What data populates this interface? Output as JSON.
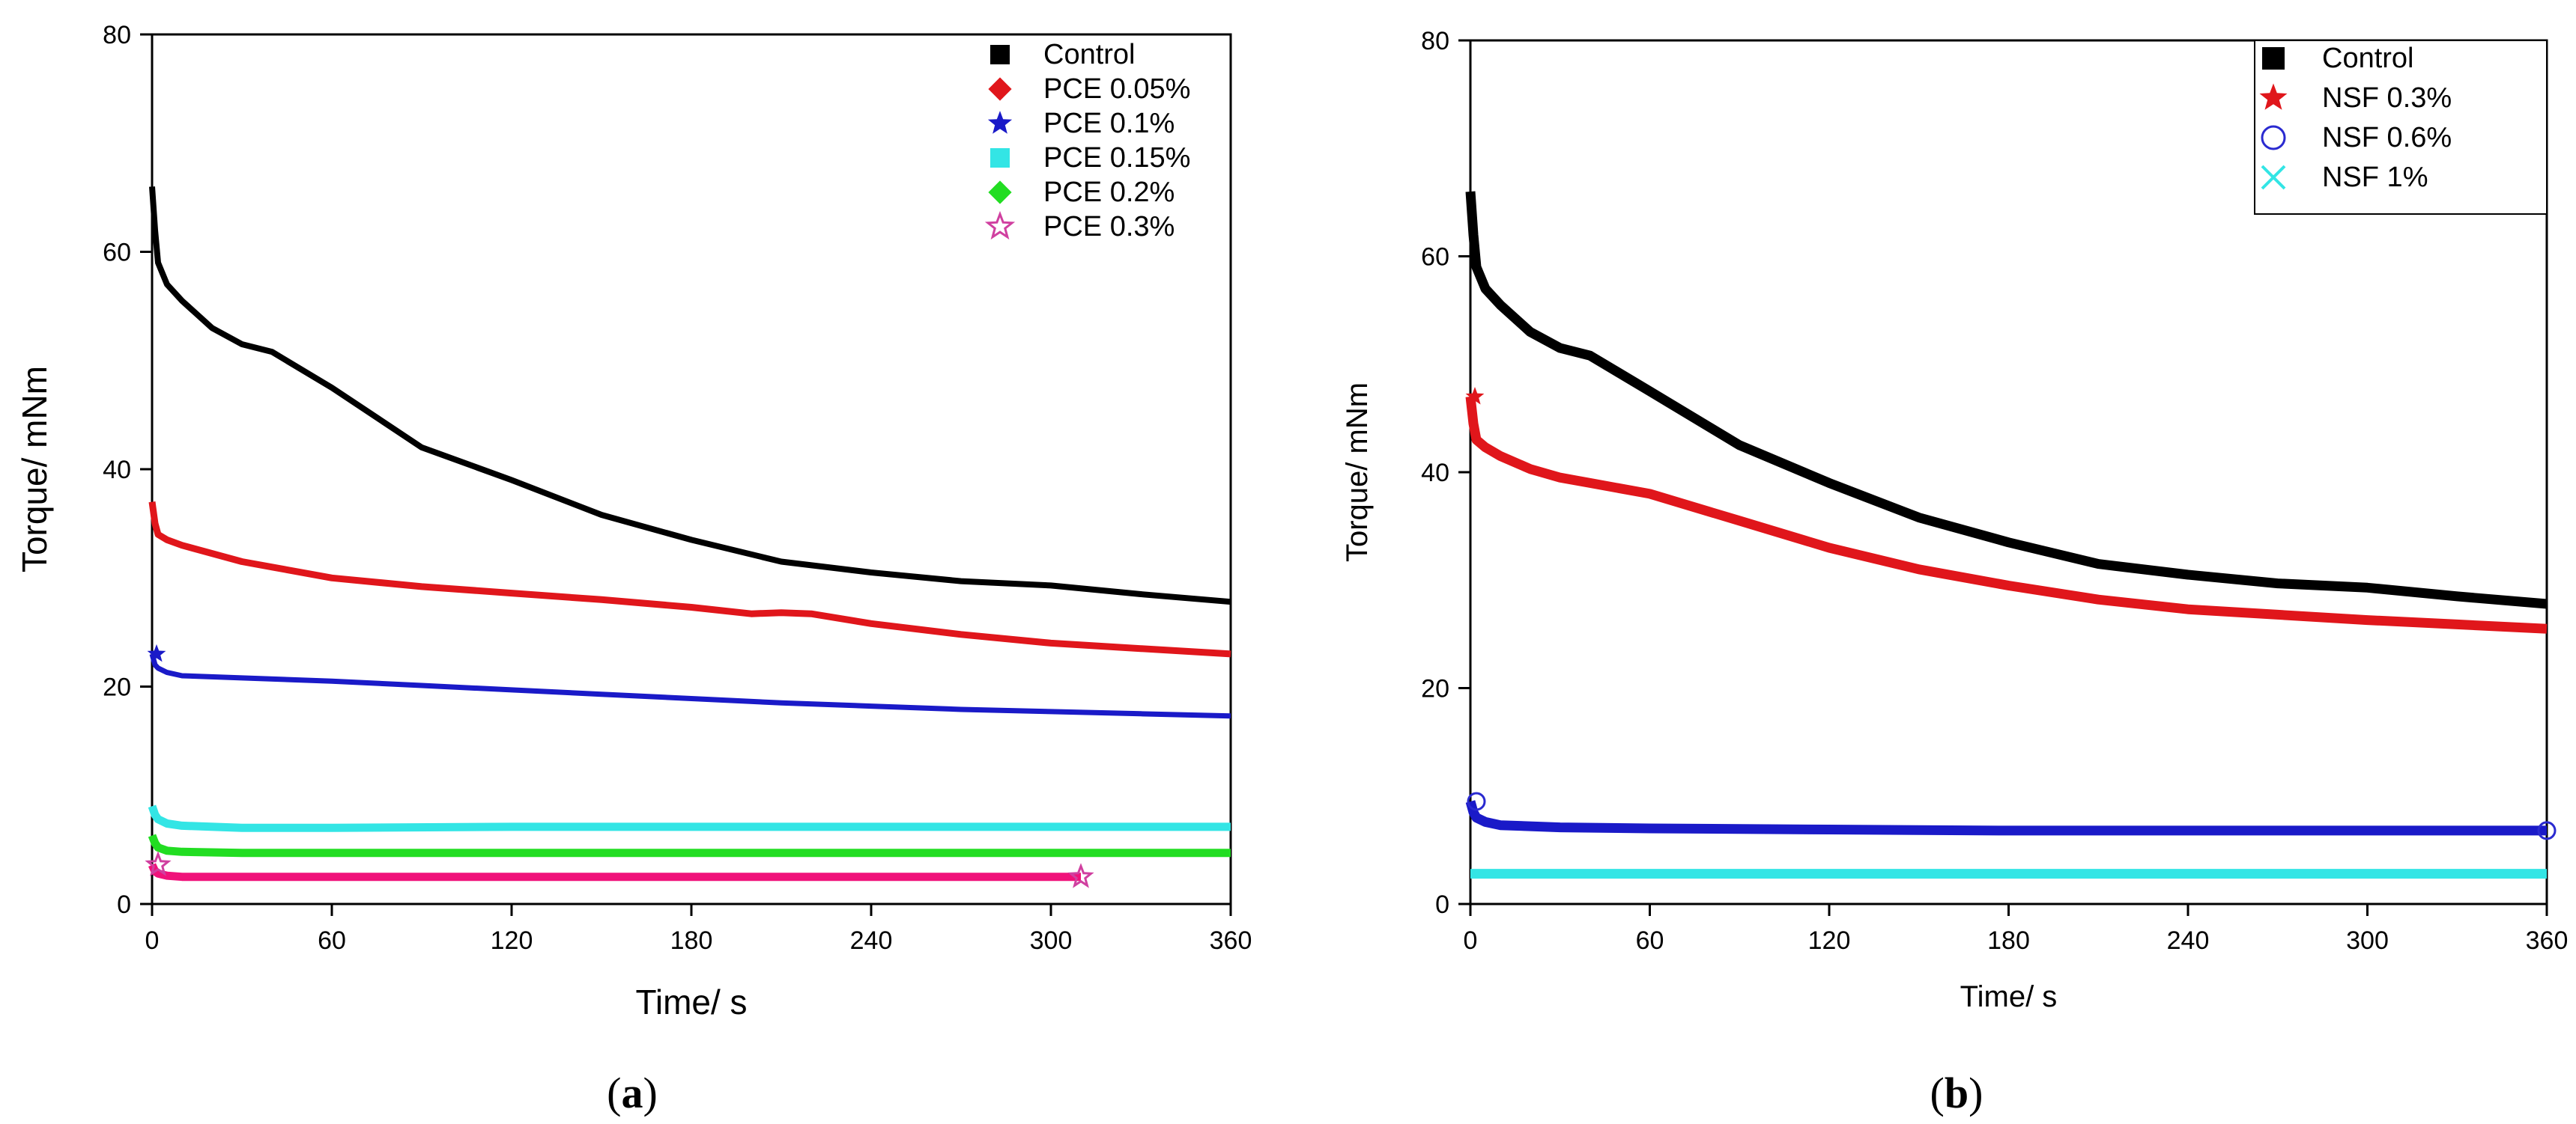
{
  "colors": {
    "black": "#000000",
    "red": "#e0161b",
    "blue": "#1a1ac8",
    "cyan": "#33e5e5",
    "green": "#22dd22",
    "magenta": "#f0127a",
    "star_outline": "#d040a0",
    "circle_outline": "#2a2ad0"
  },
  "chart_data": [
    {
      "id": "a",
      "type": "line",
      "caption": "a",
      "xlabel": "Time/ s",
      "ylabel": "Torque/ mNm",
      "xlim": [
        0,
        360
      ],
      "ylim": [
        0,
        80
      ],
      "xticks": [
        "0",
        "60",
        "120",
        "180",
        "240",
        "300",
        "360"
      ],
      "yticks": [
        "0",
        "20",
        "40",
        "60",
        "80"
      ],
      "legend_position": "top-right",
      "series": [
        {
          "name": "Control",
          "marker": "square",
          "color": "#000000",
          "width": 8,
          "x": [
            0,
            1,
            2,
            5,
            10,
            20,
            30,
            40,
            60,
            90,
            120,
            150,
            180,
            210,
            240,
            270,
            300,
            330,
            360
          ],
          "y": [
            66,
            62,
            59,
            57,
            55.5,
            53,
            51.5,
            50.8,
            47.5,
            42,
            39,
            35.8,
            33.5,
            31.5,
            30.5,
            29.7,
            29.3,
            28.5,
            27.8
          ]
        },
        {
          "name": "PCE 0.05%",
          "marker": "diamond",
          "color": "#e0161b",
          "width": 9,
          "x": [
            0,
            1,
            2,
            5,
            10,
            30,
            60,
            90,
            120,
            150,
            180,
            200,
            210,
            220,
            240,
            270,
            300,
            330,
            360
          ],
          "y": [
            37,
            35,
            34,
            33.5,
            33,
            31.5,
            30,
            29.2,
            28.6,
            28,
            27.3,
            26.7,
            26.8,
            26.7,
            25.8,
            24.8,
            24,
            23.5,
            23
          ]
        },
        {
          "name": "PCE 0.1%",
          "marker": "star",
          "color": "#1a1ac8",
          "width": 7,
          "x": [
            0,
            1,
            2,
            5,
            10,
            30,
            60,
            90,
            120,
            150,
            180,
            210,
            240,
            270,
            300,
            330,
            360
          ],
          "y": [
            23,
            22,
            21.7,
            21.3,
            21,
            20.8,
            20.5,
            20.1,
            19.7,
            19.3,
            18.9,
            18.5,
            18.2,
            17.9,
            17.7,
            17.5,
            17.3
          ]
        },
        {
          "name": "PCE 0.15%",
          "marker": "square",
          "color": "#33e5e5",
          "width": 11,
          "x": [
            0,
            1,
            2,
            5,
            10,
            30,
            60,
            120,
            180,
            240,
            300,
            360
          ],
          "y": [
            9,
            8.2,
            7.8,
            7.4,
            7.2,
            7,
            7,
            7.1,
            7.1,
            7.1,
            7.1,
            7.1
          ]
        },
        {
          "name": "PCE 0.2%",
          "marker": "diamond",
          "color": "#22dd22",
          "width": 11,
          "x": [
            0,
            1,
            2,
            5,
            10,
            30,
            60,
            120,
            180,
            240,
            300,
            360
          ],
          "y": [
            6.3,
            5.6,
            5.2,
            4.9,
            4.8,
            4.7,
            4.7,
            4.7,
            4.7,
            4.7,
            4.7,
            4.7
          ]
        },
        {
          "name": "PCE 0.3%",
          "marker": "star-open",
          "color": "#f0127a",
          "width": 11,
          "x": [
            0,
            1,
            2,
            5,
            10,
            60,
            120,
            180,
            240,
            300,
            310
          ],
          "y": [
            3.6,
            3,
            2.8,
            2.6,
            2.5,
            2.5,
            2.5,
            2.5,
            2.5,
            2.5,
            2.5
          ]
        }
      ]
    },
    {
      "id": "b",
      "type": "line",
      "caption": "b",
      "xlabel": "Time/ s",
      "ylabel": "Torque/ mNm",
      "xlim": [
        0,
        360
      ],
      "ylim": [
        0,
        80
      ],
      "xticks": [
        "0",
        "60",
        "120",
        "180",
        "240",
        "300",
        "360"
      ],
      "yticks": [
        "0",
        "20",
        "40",
        "60",
        "80"
      ],
      "legend_position": "top-right",
      "series": [
        {
          "name": "Control",
          "marker": "square",
          "color": "#000000",
          "width": 13,
          "x": [
            0,
            1,
            2,
            5,
            10,
            20,
            30,
            40,
            60,
            90,
            120,
            150,
            180,
            210,
            240,
            270,
            300,
            330,
            360
          ],
          "y": [
            66,
            62,
            59,
            57,
            55.5,
            53,
            51.5,
            50.8,
            47.5,
            42.5,
            39,
            35.8,
            33.5,
            31.5,
            30.5,
            29.7,
            29.3,
            28.5,
            27.8
          ]
        },
        {
          "name": "NSF 0.3%",
          "marker": "star",
          "color": "#e0161b",
          "width": 13,
          "x": [
            0,
            1,
            2,
            5,
            10,
            20,
            30,
            40,
            60,
            90,
            120,
            150,
            180,
            210,
            240,
            270,
            300,
            330,
            360
          ],
          "y": [
            47,
            44.5,
            43,
            42.3,
            41.5,
            40.3,
            39.5,
            39,
            38,
            35.5,
            33,
            31,
            29.5,
            28.2,
            27.3,
            26.8,
            26.3,
            25.9,
            25.5
          ]
        },
        {
          "name": "NSF 0.6%",
          "marker": "circle-open",
          "color": "#1a1ac8",
          "width": 13,
          "x": [
            0,
            1,
            2,
            5,
            10,
            30,
            60,
            120,
            180,
            240,
            300,
            360
          ],
          "y": [
            9.5,
            8.5,
            8,
            7.6,
            7.3,
            7.1,
            7,
            6.9,
            6.8,
            6.8,
            6.8,
            6.8
          ]
        },
        {
          "name": "NSF 1%",
          "marker": "x",
          "color": "#33e5e5",
          "width": 13,
          "x": [
            0,
            60,
            120,
            180,
            240,
            300,
            360
          ],
          "y": [
            2.8,
            2.8,
            2.8,
            2.8,
            2.8,
            2.8,
            2.8
          ]
        }
      ]
    }
  ]
}
